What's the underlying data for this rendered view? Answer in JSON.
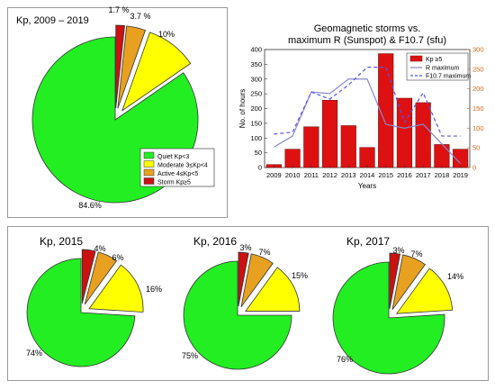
{
  "chart_data": [
    {
      "type": "pie",
      "title": "Kp, 2009 – 2019",
      "categories": [
        "Quiet Kp<3",
        "Moderate 3≤Kp<4",
        "Active 4≤Kp<5",
        "Storm Kp≥5"
      ],
      "values": [
        84.6,
        10,
        3.7,
        1.7
      ],
      "labels": [
        "84.6%",
        "10%",
        "3.7 %",
        "1.7 %"
      ],
      "colors": [
        "#22ee22",
        "#ffff00",
        "#e8a020",
        "#cc1111"
      ],
      "legend": "bottom-right",
      "exploded": true
    },
    {
      "type": "bar",
      "title": "Geomagnetic storms vs.",
      "subtitle": "maximum R (Sunspot) & F10.7 (sfu)",
      "xlabel": "Years",
      "ylabel": "No. of hours",
      "categories": [
        "2009",
        "2010",
        "2011",
        "2012",
        "2013",
        "2014",
        "2015",
        "2016",
        "2017",
        "2018",
        "2019"
      ],
      "ylim": [
        0,
        400
      ],
      "yticks": [
        "0",
        "50",
        "100",
        "150",
        "200",
        "250",
        "300",
        "350",
        "400"
      ],
      "y2lim": [
        0,
        300
      ],
      "y2ticks": [
        "0",
        "50",
        "100",
        "150",
        "200",
        "250",
        "300"
      ],
      "series": [
        {
          "name": "Kp ≥5",
          "kind": "bar",
          "color": "#dd1111",
          "values": [
            10,
            62,
            138,
            228,
            142,
            68,
            386,
            235,
            220,
            78,
            62
          ]
        },
        {
          "name": "R maximum",
          "kind": "line",
          "axis": "right",
          "color": "#8888cc",
          "values": [
            52,
            80,
            192,
            188,
            225,
            225,
            110,
            100,
            110,
            60,
            10
          ]
        },
        {
          "name": "F10.7 maximum",
          "kind": "line",
          "axis": "right",
          "color": "#5555ee",
          "values": [
            85,
            90,
            192,
            174,
            210,
            255,
            255,
            115,
            190,
            80,
            80
          ]
        }
      ],
      "legend": "top-right",
      "grid": false
    },
    {
      "type": "pie",
      "title": "Kp, 2015",
      "categories": [
        "Quiet Kp<3",
        "Moderate 3≤Kp<4",
        "Active 4≤Kp<5",
        "Storm Kp≥5"
      ],
      "values": [
        74,
        16,
        6,
        4
      ],
      "labels": [
        "74%",
        "16%",
        "6%",
        "4%"
      ],
      "colors": [
        "#22ee22",
        "#ffff00",
        "#e8a020",
        "#cc1111"
      ],
      "exploded": true
    },
    {
      "type": "pie",
      "title": "Kp, 2016",
      "categories": [
        "Quiet Kp<3",
        "Moderate 3≤Kp<4",
        "Active 4≤Kp<5",
        "Storm Kp≥5"
      ],
      "values": [
        75,
        15,
        7,
        3
      ],
      "labels": [
        "75%",
        "15%",
        "7%",
        "3%"
      ],
      "colors": [
        "#22ee22",
        "#ffff00",
        "#e8a020",
        "#cc1111"
      ],
      "exploded": true
    },
    {
      "type": "pie",
      "title": "Kp, 2017",
      "categories": [
        "Quiet Kp<3",
        "Moderate 3≤Kp<4",
        "Active 4≤Kp<5",
        "Storm Kp≥5"
      ],
      "values": [
        76,
        14,
        7,
        3
      ],
      "labels": [
        "76%",
        "14%",
        "7%",
        "3%"
      ],
      "colors": [
        "#22ee22",
        "#ffff00",
        "#e8a020",
        "#cc1111"
      ],
      "exploded": true
    }
  ]
}
